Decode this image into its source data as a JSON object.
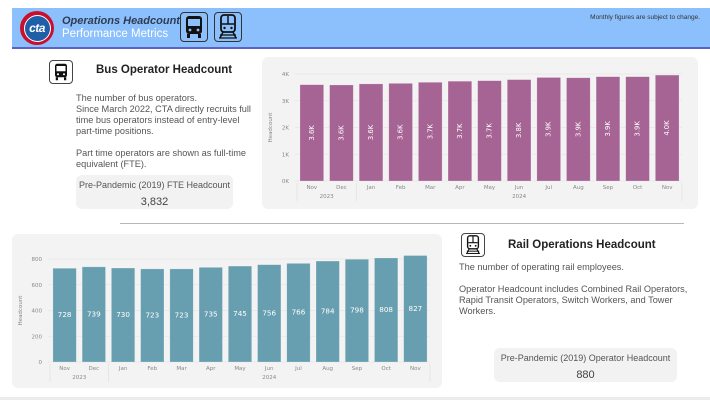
{
  "header": {
    "logo_text": "cta",
    "title": "Operations Headcount",
    "subtitle": "Performance Metrics",
    "note": "Monthly figures are subject to change.",
    "icons": [
      "bus-icon",
      "train-icon"
    ],
    "colors": {
      "band": "#8cc0fd",
      "underline": "#5b63c6",
      "logo_red": "#c8102e",
      "logo_blue": "#1f5fa8"
    }
  },
  "bus": {
    "title": "Bus Operator Headcount",
    "icon": "bus-icon",
    "description": [
      "The number of bus operators.\nSince March 2022, CTA directly recruits full time bus operators instead of entry-level part-time positions.",
      "Part time operators are shown as full-time equivalent (FTE)."
    ],
    "kpi": {
      "label": "Pre-Pandemic (2019) FTE Headcount",
      "value": "3,832"
    }
  },
  "rail": {
    "title": "Rail Operations Headcount",
    "icon": "train-icon",
    "description": [
      "The number of operating rail employees.",
      "Operator Headcount includes Combined Rail Operators, Rapid Transit Operators, Switch Workers, and Tower Workers."
    ],
    "kpi": {
      "label": "Pre-Pandemic (2019) Operator Headcount",
      "value": "880"
    }
  },
  "chart_data": [
    {
      "id": "bus-chart",
      "type": "bar",
      "title": "",
      "xlabel": "",
      "ylabel": "Headcount",
      "categories": [
        "Nov",
        "Dec",
        "Jan",
        "Feb",
        "Mar",
        "Apr",
        "May",
        "Jun",
        "Jul",
        "Aug",
        "Sep",
        "Oct",
        "Nov"
      ],
      "year_groups": [
        {
          "label": "2023",
          "start": 0,
          "end": 1
        },
        {
          "label": "2024",
          "start": 2,
          "end": 12
        }
      ],
      "values": [
        3600,
        3590,
        3630,
        3650,
        3690,
        3730,
        3750,
        3790,
        3870,
        3860,
        3900,
        3900,
        3960
      ],
      "data_labels": [
        "3.6K",
        "3.6K",
        "3.6K",
        "3.6K",
        "3.7K",
        "3.7K",
        "3.7K",
        "3.8K",
        "3.9K",
        "3.9K",
        "3.9K",
        "3.9K",
        "4.0K"
      ],
      "yticks": [
        0,
        1000,
        2000,
        3000,
        4000
      ],
      "ytick_labels": [
        "0K",
        "1K",
        "2K",
        "3K",
        "4K"
      ],
      "ylim": [
        0,
        4000
      ],
      "grid": true,
      "color": "#a66495"
    },
    {
      "id": "rail-chart",
      "type": "bar",
      "title": "",
      "xlabel": "",
      "ylabel": "Headcount",
      "categories": [
        "Nov",
        "Dec",
        "Jan",
        "Feb",
        "Mar",
        "Apr",
        "May",
        "Jun",
        "Jul",
        "Aug",
        "Sep",
        "Oct",
        "Nov"
      ],
      "year_groups": [
        {
          "label": "2023",
          "start": 0,
          "end": 1
        },
        {
          "label": "2024",
          "start": 2,
          "end": 12
        }
      ],
      "values": [
        728,
        739,
        730,
        723,
        723,
        735,
        745,
        756,
        766,
        784,
        798,
        808,
        827
      ],
      "data_labels": [
        "728",
        "739",
        "730",
        "723",
        "723",
        "735",
        "745",
        "756",
        "766",
        "784",
        "798",
        "808",
        "827"
      ],
      "yticks": [
        0,
        200,
        400,
        600,
        800
      ],
      "ytick_labels": [
        "0",
        "200",
        "400",
        "600",
        "800"
      ],
      "ylim": [
        0,
        800
      ],
      "grid": true,
      "color": "#679fb1"
    }
  ]
}
